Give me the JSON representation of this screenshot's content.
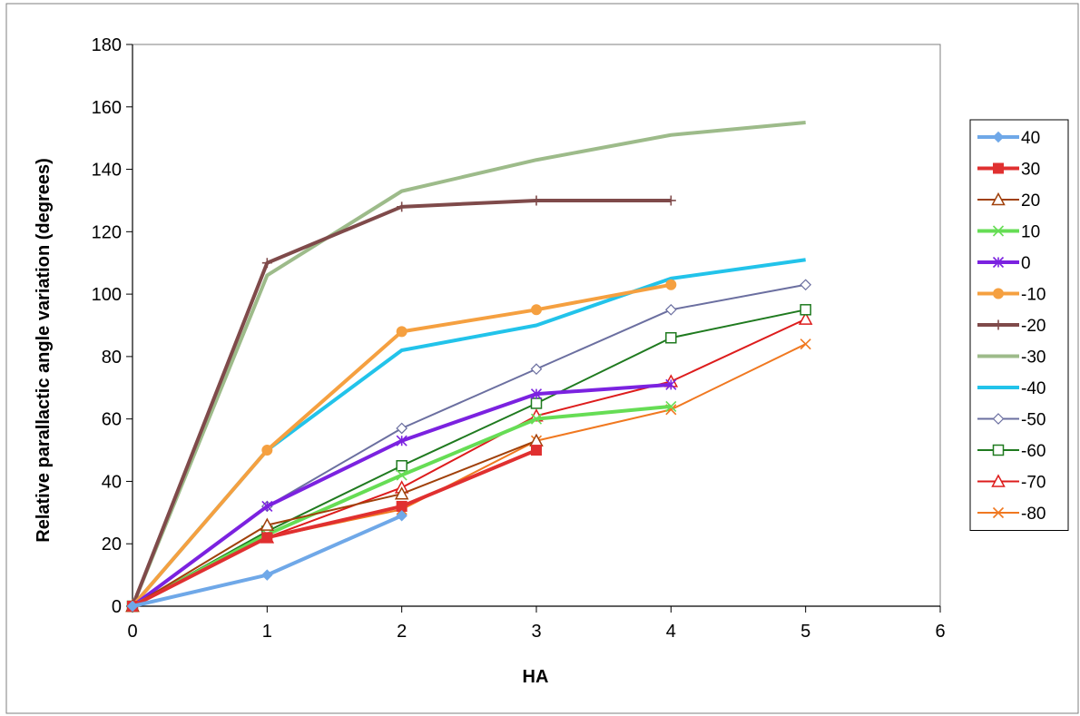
{
  "chart_data": {
    "type": "line",
    "title": "",
    "xlabel": "HA",
    "ylabel": "Relative parallactic angle variation (degrees)",
    "xlim": [
      0,
      6
    ],
    "ylim": [
      0,
      180
    ],
    "xticks": [
      0,
      1,
      2,
      3,
      4,
      5,
      6
    ],
    "yticks": [
      0,
      20,
      40,
      60,
      80,
      100,
      120,
      140,
      160,
      180
    ],
    "grid": false,
    "legend_position": "right",
    "series": [
      {
        "name": "40",
        "color": "#6fa8e8",
        "marker": "diamond-filled",
        "thick": true,
        "x": [
          0,
          1,
          2
        ],
        "y": [
          0,
          10,
          29
        ]
      },
      {
        "name": "30",
        "color": "#e03030",
        "marker": "square-filled",
        "thick": true,
        "x": [
          0,
          1,
          2,
          3
        ],
        "y": [
          0,
          22,
          32,
          50
        ]
      },
      {
        "name": "20",
        "color": "#a0400a",
        "marker": "triangle-open",
        "thick": false,
        "x": [
          0,
          1,
          2,
          3
        ],
        "y": [
          0,
          26,
          36,
          53
        ]
      },
      {
        "name": "10",
        "color": "#66dd55",
        "marker": "x",
        "thick": true,
        "x": [
          0,
          1,
          2,
          3,
          4
        ],
        "y": [
          0,
          23,
          42,
          60,
          64
        ]
      },
      {
        "name": "0",
        "color": "#7b22e0",
        "marker": "asterisk",
        "thick": true,
        "x": [
          0,
          1,
          2,
          3,
          4
        ],
        "y": [
          0,
          32,
          53,
          68,
          71
        ]
      },
      {
        "name": "-10",
        "color": "#f5a040",
        "marker": "circle-filled",
        "thick": true,
        "x": [
          0,
          1,
          2,
          3,
          4
        ],
        "y": [
          0,
          50,
          88,
          95,
          103
        ]
      },
      {
        "name": "-20",
        "color": "#7f4a4a",
        "marker": "plus",
        "thick": true,
        "x": [
          0,
          1,
          2,
          3,
          4
        ],
        "y": [
          0,
          110,
          128,
          130,
          130
        ]
      },
      {
        "name": "-30",
        "color": "#9dbb8a",
        "marker": "none",
        "thick": true,
        "x": [
          0,
          1,
          2,
          3,
          4,
          5
        ],
        "y": [
          0,
          106,
          133,
          143,
          151,
          155
        ]
      },
      {
        "name": "-40",
        "color": "#22c3ea",
        "marker": "none",
        "thick": true,
        "x": [
          0,
          1,
          2,
          3,
          4,
          5
        ],
        "y": [
          0,
          50,
          82,
          90,
          105,
          111
        ]
      },
      {
        "name": "-50",
        "color": "#6b6fa0",
        "marker": "diamond-open",
        "thick": false,
        "x": [
          0,
          1,
          2,
          3,
          4,
          5
        ],
        "y": [
          0,
          32,
          57,
          76,
          95,
          103
        ]
      },
      {
        "name": "-60",
        "color": "#1f7a1f",
        "marker": "square-open",
        "thick": false,
        "x": [
          0,
          1,
          2,
          3,
          4,
          5
        ],
        "y": [
          0,
          24,
          45,
          65,
          86,
          95
        ]
      },
      {
        "name": "-70",
        "color": "#dd1c1c",
        "marker": "triangle-open",
        "thick": false,
        "x": [
          0,
          1,
          2,
          3,
          4,
          5
        ],
        "y": [
          0,
          22,
          38,
          61,
          72,
          92
        ]
      },
      {
        "name": "-80",
        "color": "#f07820",
        "marker": "x",
        "thick": false,
        "x": [
          0,
          1,
          2,
          3,
          4,
          5
        ],
        "y": [
          0,
          22,
          31,
          53,
          63,
          84
        ]
      }
    ]
  }
}
